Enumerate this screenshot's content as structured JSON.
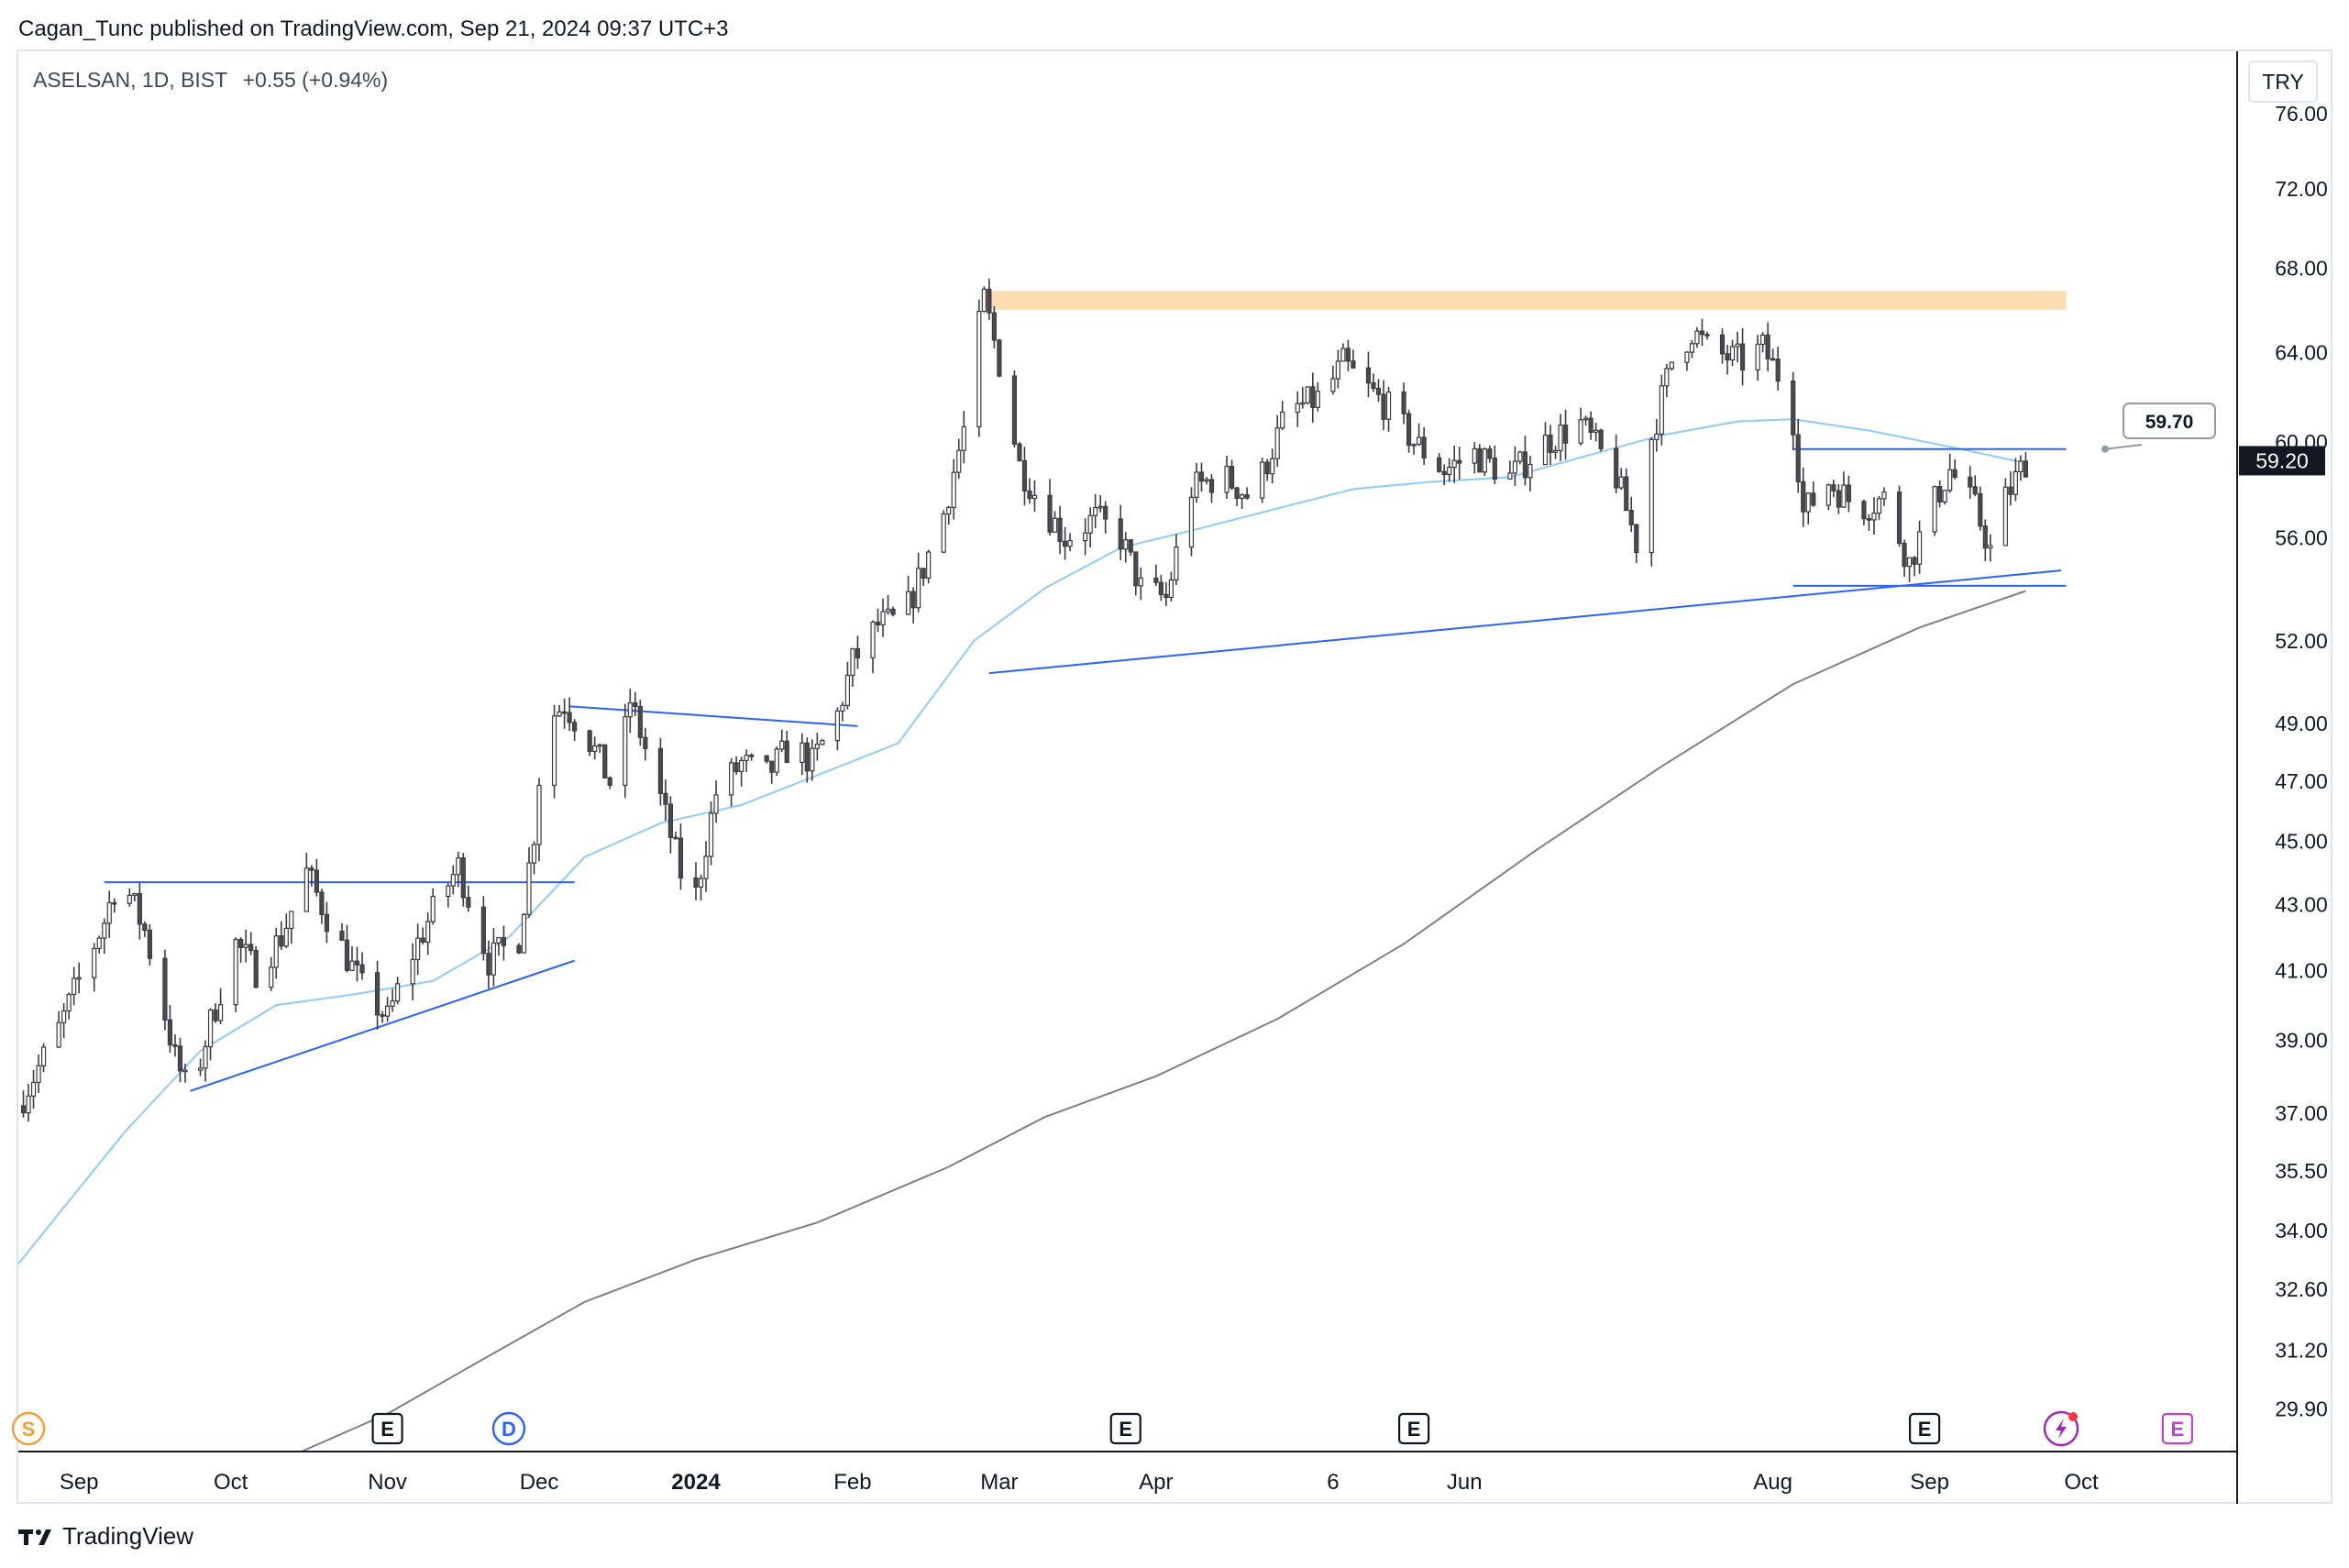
{
  "header": {
    "published_line": "Cagan_Tunc published on TradingView.com, Sep 21, 2024 09:37 UTC+3"
  },
  "legend": {
    "symbol": "ASELSAN, 1D, BIST",
    "change": "+0.55 (+0.94%)"
  },
  "currency_button": "TRY",
  "footer": {
    "brand": "TradingView"
  },
  "colors": {
    "candle_up": "#ffffff",
    "candle_down": "#4a4a4f",
    "wick": "#3b3b40",
    "ma_fast": "#90caf9",
    "ma_slow": "#808080",
    "trendline": "#2962ff",
    "resistance_zone": "#fddcb0"
  },
  "chart_data": {
    "type": "candlestick",
    "title": "",
    "y_scale": "log",
    "ylim": [
      29.0,
      79.5
    ],
    "y_ticks": [
      "76.00",
      "72.00",
      "68.00",
      "64.00",
      "60.00",
      "56.00",
      "52.00",
      "49.00",
      "47.00",
      "45.00",
      "43.00",
      "41.00",
      "39.00",
      "37.00",
      "35.50",
      "34.00",
      "32.60",
      "31.20",
      "29.90"
    ],
    "x_ticks": [
      {
        "label": "Sep",
        "date": "2023-09-01"
      },
      {
        "label": "Oct",
        "date": "2023-10-01"
      },
      {
        "label": "Nov",
        "date": "2023-11-01"
      },
      {
        "label": "Dec",
        "date": "2023-12-01"
      },
      {
        "label": "2024",
        "date": "2024-01-01"
      },
      {
        "label": "Feb",
        "date": "2024-02-01"
      },
      {
        "label": "Mar",
        "date": "2024-03-01"
      },
      {
        "label": "Apr",
        "date": "2024-04-01"
      },
      {
        "label": "6",
        "date": "2024-05-06"
      },
      {
        "label": "Jun",
        "date": "2024-06-01"
      },
      {
        "label": "Aug",
        "date": "2024-08-01"
      },
      {
        "label": "Sep",
        "date": "2024-09-01"
      },
      {
        "label": "Oct",
        "date": "2024-10-01"
      }
    ],
    "xlim": [
      "2023-08-20",
      "2024-10-30"
    ],
    "price_path": [
      [
        "2023-08-20",
        37.2
      ],
      [
        "2023-08-28",
        39.3
      ],
      [
        "2023-09-06",
        42.5
      ],
      [
        "2023-09-09",
        44.0
      ],
      [
        "2023-09-14",
        42.2
      ],
      [
        "2023-09-20",
        38.5
      ],
      [
        "2023-09-23",
        37.4
      ],
      [
        "2023-09-27",
        39.5
      ],
      [
        "2023-10-02",
        41.8
      ],
      [
        "2023-10-06",
        41.0
      ],
      [
        "2023-10-11",
        42.0
      ],
      [
        "2023-10-16",
        44.0
      ],
      [
        "2023-10-21",
        42.3
      ],
      [
        "2023-10-27",
        40.5
      ],
      [
        "2023-11-01",
        39.6
      ],
      [
        "2023-11-05",
        41.2
      ],
      [
        "2023-11-10",
        42.8
      ],
      [
        "2023-11-15",
        44.2
      ],
      [
        "2023-11-21",
        41.3
      ],
      [
        "2023-11-27",
        42.0
      ],
      [
        "2023-11-30",
        45.3
      ],
      [
        "2023-12-02",
        49.0
      ],
      [
        "2023-12-06",
        49.7
      ],
      [
        "2023-12-11",
        48.4
      ],
      [
        "2023-12-16",
        46.6
      ],
      [
        "2023-12-19",
        49.8
      ],
      [
        "2023-12-24",
        47.0
      ],
      [
        "2023-12-29",
        44.0
      ],
      [
        "2024-01-01",
        43.3
      ],
      [
        "2024-01-05",
        46.6
      ],
      [
        "2024-01-10",
        47.6
      ],
      [
        "2024-01-15",
        47.2
      ],
      [
        "2024-01-20",
        48.3
      ],
      [
        "2024-01-24",
        47.6
      ],
      [
        "2024-01-29",
        49.3
      ],
      [
        "2024-02-01",
        51.2
      ],
      [
        "2024-02-06",
        52.6
      ],
      [
        "2024-02-11",
        52.8
      ],
      [
        "2024-02-15",
        54.8
      ],
      [
        "2024-02-19",
        57.0
      ],
      [
        "2024-02-23",
        60.5
      ],
      [
        "2024-02-26",
        65.2
      ],
      [
        "2024-02-27",
        66.5
      ],
      [
        "2024-03-01",
        63.5
      ],
      [
        "2024-03-05",
        59.0
      ],
      [
        "2024-03-09",
        57.5
      ],
      [
        "2024-03-14",
        56.0
      ],
      [
        "2024-03-20",
        56.8
      ],
      [
        "2024-03-25",
        56.0
      ],
      [
        "2024-03-29",
        54.0
      ],
      [
        "2024-04-03",
        53.6
      ],
      [
        "2024-04-08",
        58.0
      ],
      [
        "2024-04-14",
        58.6
      ],
      [
        "2024-04-20",
        57.6
      ],
      [
        "2024-04-27",
        61.3
      ],
      [
        "2024-05-04",
        62.0
      ],
      [
        "2024-05-08",
        63.5
      ],
      [
        "2024-05-12",
        62.5
      ],
      [
        "2024-05-17",
        61.5
      ],
      [
        "2024-05-22",
        60.0
      ],
      [
        "2024-05-28",
        58.8
      ],
      [
        "2024-06-03",
        59.5
      ],
      [
        "2024-06-10",
        58.5
      ],
      [
        "2024-06-17",
        60.0
      ],
      [
        "2024-06-24",
        60.8
      ],
      [
        "2024-07-01",
        58.5
      ],
      [
        "2024-07-05",
        55.8
      ],
      [
        "2024-07-08",
        60.2
      ],
      [
        "2024-07-12",
        63.6
      ],
      [
        "2024-07-16",
        65.0
      ],
      [
        "2024-07-20",
        64.0
      ],
      [
        "2024-07-26",
        63.6
      ],
      [
        "2024-07-30",
        64.2
      ],
      [
        "2024-08-02",
        63.0
      ],
      [
        "2024-08-05",
        61.0
      ],
      [
        "2024-08-07",
        57.0
      ],
      [
        "2024-08-12",
        58.3
      ],
      [
        "2024-08-18",
        57.2
      ],
      [
        "2024-08-23",
        57.6
      ],
      [
        "2024-08-28",
        55.0
      ],
      [
        "2024-09-02",
        57.5
      ],
      [
        "2024-09-05",
        58.8
      ],
      [
        "2024-09-10",
        57.2
      ],
      [
        "2024-09-13",
        55.5
      ],
      [
        "2024-09-16",
        57.6
      ],
      [
        "2024-09-20",
        59.2
      ]
    ],
    "ma_fast": [
      [
        "2023-08-20",
        33.2
      ],
      [
        "2023-09-10",
        36.5
      ],
      [
        "2023-09-25",
        38.7
      ],
      [
        "2023-10-10",
        40.0
      ],
      [
        "2023-10-25",
        40.3
      ],
      [
        "2023-11-10",
        40.7
      ],
      [
        "2023-11-25",
        42.0
      ],
      [
        "2023-12-10",
        44.5
      ],
      [
        "2023-12-25",
        45.6
      ],
      [
        "2024-01-10",
        46.2
      ],
      [
        "2024-01-25",
        47.2
      ],
      [
        "2024-02-10",
        48.3
      ],
      [
        "2024-02-25",
        52.0
      ],
      [
        "2024-03-10",
        54.0
      ],
      [
        "2024-03-25",
        55.6
      ],
      [
        "2024-04-10",
        56.4
      ],
      [
        "2024-04-25",
        57.2
      ],
      [
        "2024-05-10",
        58.0
      ],
      [
        "2024-05-25",
        58.3
      ],
      [
        "2024-06-10",
        58.5
      ],
      [
        "2024-06-25",
        59.4
      ],
      [
        "2024-07-10",
        60.3
      ],
      [
        "2024-07-25",
        60.9
      ],
      [
        "2024-08-05",
        61.0
      ],
      [
        "2024-08-20",
        60.5
      ],
      [
        "2024-09-05",
        59.8
      ],
      [
        "2024-09-20",
        59.1
      ]
    ],
    "ma_slow": [
      [
        "2023-10-15",
        29.0
      ],
      [
        "2023-11-01",
        29.8
      ],
      [
        "2023-11-20",
        31.0
      ],
      [
        "2023-12-10",
        32.3
      ],
      [
        "2024-01-01",
        33.3
      ],
      [
        "2024-01-25",
        34.2
      ],
      [
        "2024-02-20",
        35.6
      ],
      [
        "2024-03-10",
        36.9
      ],
      [
        "2024-04-01",
        38.0
      ],
      [
        "2024-04-25",
        39.6
      ],
      [
        "2024-05-20",
        41.8
      ],
      [
        "2024-06-15",
        44.7
      ],
      [
        "2024-07-10",
        47.5
      ],
      [
        "2024-08-05",
        50.4
      ],
      [
        "2024-08-30",
        52.5
      ],
      [
        "2024-09-20",
        53.9
      ]
    ],
    "trendlines": [
      {
        "from": [
          "2023-09-23",
          37.6
        ],
        "to": [
          "2023-12-08",
          41.3
        ]
      },
      {
        "from": [
          "2023-09-06",
          43.7
        ],
        "to": [
          "2023-12-08",
          43.7
        ]
      },
      {
        "from": [
          "2023-12-07",
          49.6
        ],
        "to": [
          "2024-02-02",
          48.9
        ]
      },
      {
        "from": [
          "2024-02-28",
          50.8
        ],
        "to": [
          "2024-09-27",
          54.7
        ]
      },
      {
        "from": [
          "2024-08-05",
          54.1
        ],
        "to": [
          "2024-09-28",
          54.1
        ]
      },
      {
        "from": [
          "2024-08-05",
          59.7
        ],
        "to": [
          "2024-09-28",
          59.7
        ]
      }
    ],
    "resistance_zone": {
      "from": "2024-02-27",
      "to": "2024-09-28",
      "low": 66.0,
      "high": 66.9
    },
    "last_price": "59.20",
    "alert_label": "59.70",
    "event_markers": [
      {
        "label": "S",
        "date": "2023-08-22",
        "color": "#f0a030"
      },
      {
        "label": "E",
        "date": "2023-11-01",
        "color": "#131722"
      },
      {
        "label": "D",
        "date": "2023-11-25",
        "color": "#2962ff"
      },
      {
        "label": "E",
        "date": "2024-03-26",
        "color": "#131722"
      },
      {
        "label": "E",
        "date": "2024-05-22",
        "color": "#131722"
      },
      {
        "label": "E",
        "date": "2024-08-31",
        "color": "#131722"
      },
      {
        "label": "E",
        "date": "2024-10-20",
        "color": "#c040d0"
      }
    ]
  }
}
